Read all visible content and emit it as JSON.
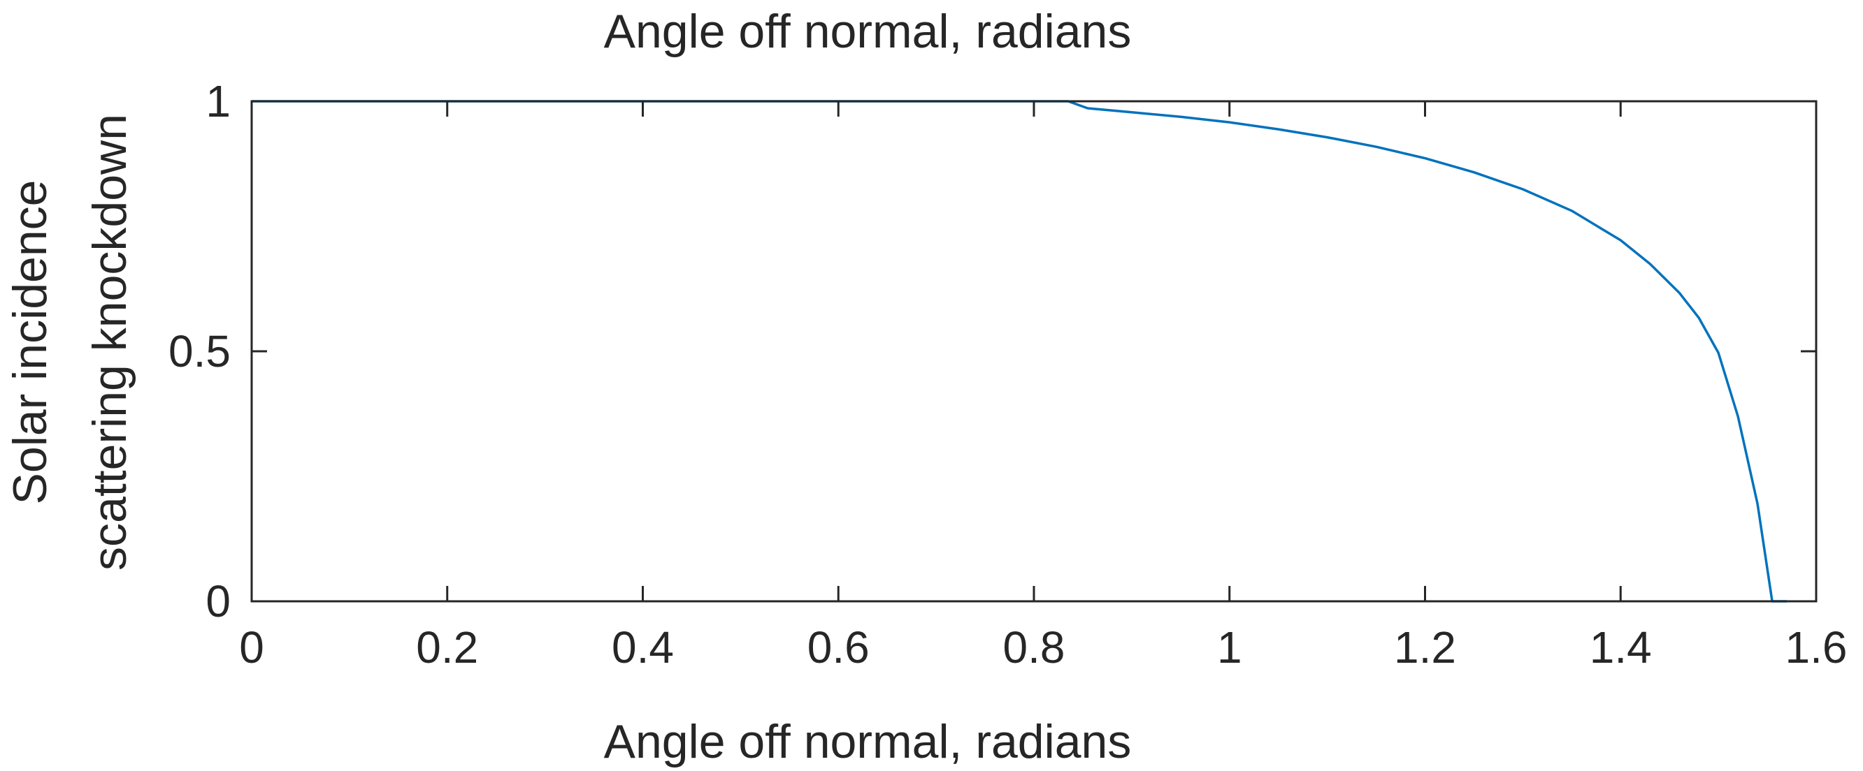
{
  "chart_data": {
    "type": "line",
    "title": "Angle off normal, radians",
    "xlabel": "Angle off normal, radians",
    "ylabel_lines": [
      "Solar incidence",
      "scattering knockdown"
    ],
    "xlim": [
      0,
      1.6
    ],
    "ylim": [
      0,
      1
    ],
    "xticks": [
      0,
      0.2,
      0.4,
      0.6,
      0.8,
      1,
      1.2,
      1.4,
      1.6
    ],
    "xtick_labels": [
      "0",
      "0.2",
      "0.4",
      "0.6",
      "0.8",
      "1",
      "1.2",
      "1.4",
      "1.6"
    ],
    "yticks": [
      0,
      0.5,
      1
    ],
    "ytick_labels": [
      "0",
      "0.5",
      "1"
    ],
    "grid": false,
    "colors": {
      "line": "#0072BD",
      "axes": "#262626"
    },
    "series": [
      {
        "x": [
          0,
          0.1,
          0.2,
          0.3,
          0.4,
          0.5,
          0.6,
          0.7,
          0.8,
          0.835,
          0.855,
          0.9,
          0.95,
          1.0,
          1.05,
          1.1,
          1.15,
          1.2,
          1.25,
          1.3,
          1.35,
          1.4,
          1.43,
          1.46,
          1.48,
          1.5,
          1.52,
          1.54,
          1.555,
          1.57
        ],
        "y": [
          1,
          1,
          1,
          1,
          1,
          1,
          1,
          1,
          1,
          1,
          0.986,
          0.978,
          0.969,
          0.958,
          0.944,
          0.928,
          0.909,
          0.886,
          0.858,
          0.824,
          0.781,
          0.722,
          0.675,
          0.617,
          0.567,
          0.497,
          0.37,
          0.195,
          0,
          0
        ]
      }
    ]
  }
}
